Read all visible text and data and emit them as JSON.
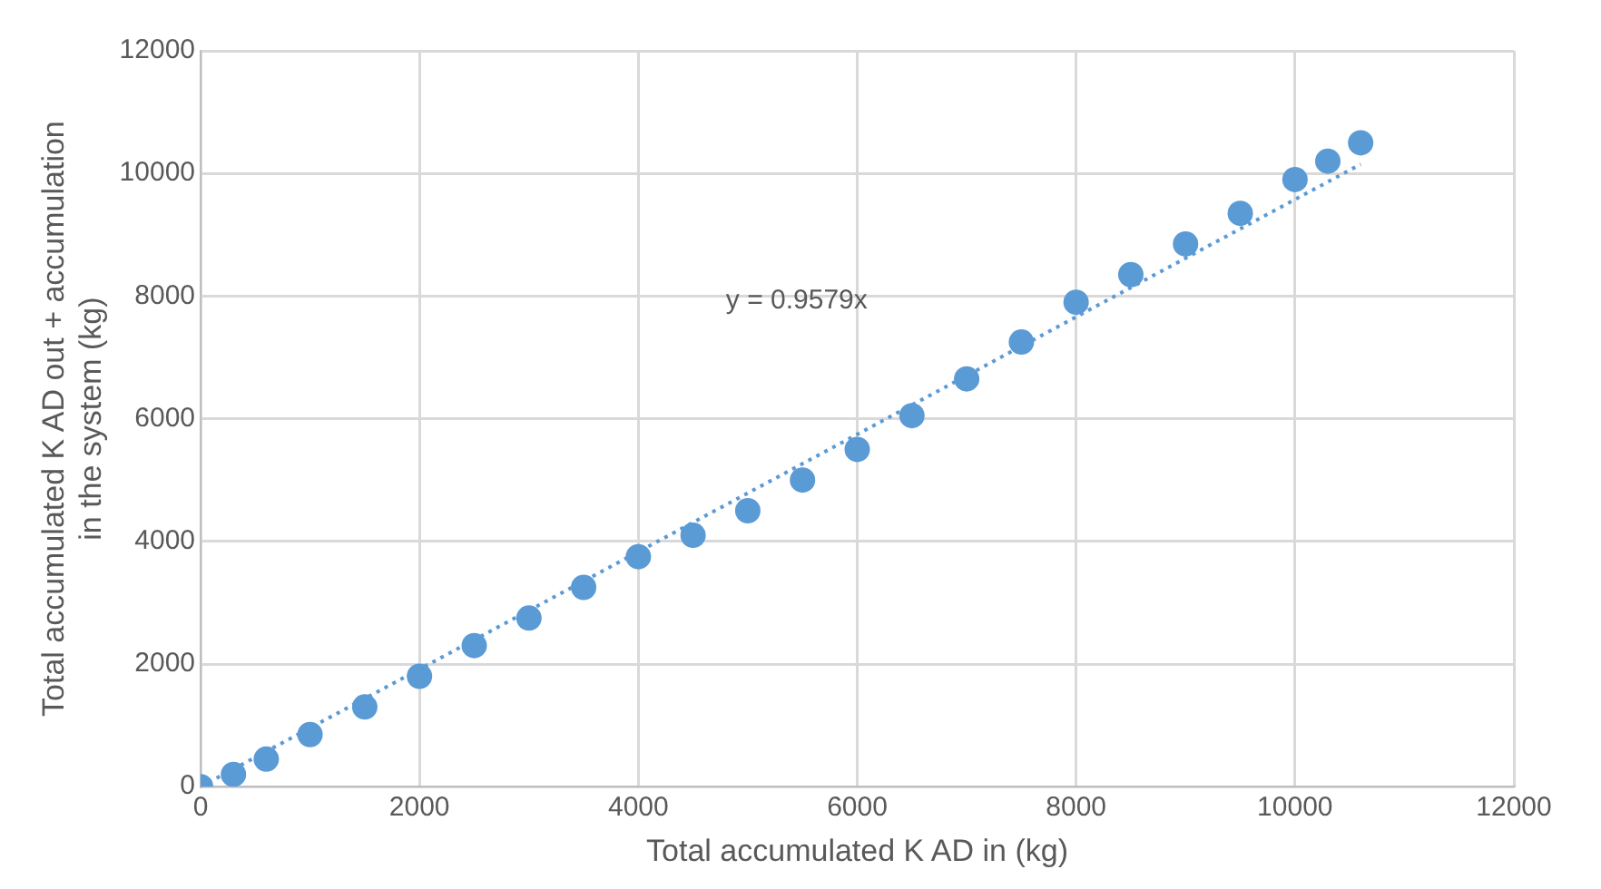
{
  "chart_data": {
    "type": "scatter",
    "xlabel": "Total accumulated K AD in (kg)",
    "ylabel": "Total accumulated K AD out + accumulation in the system (kg)",
    "xlim": [
      0,
      12000
    ],
    "ylim": [
      0,
      12000
    ],
    "xticks": [
      0,
      2000,
      4000,
      6000,
      8000,
      10000,
      12000
    ],
    "yticks": [
      0,
      2000,
      4000,
      6000,
      8000,
      10000,
      12000
    ],
    "grid": true,
    "legend": false,
    "marker": "circle",
    "annotations": [
      "y = 0.9579x"
    ],
    "series": [
      {
        "color": "#5b9bd5",
        "x": [
          0,
          300,
          600,
          1000,
          1500,
          2000,
          2500,
          3000,
          3500,
          4000,
          4500,
          5000,
          5500,
          6000,
          6500,
          7000,
          7500,
          8000,
          8500,
          9000,
          9500,
          10000,
          10300,
          10600
        ],
        "values": [
          0,
          200,
          450,
          850,
          1300,
          1800,
          2300,
          2750,
          3250,
          3750,
          4100,
          4500,
          5000,
          5500,
          6050,
          6650,
          7250,
          7900,
          8350,
          8850,
          9350,
          9900,
          10200,
          10500
        ]
      },
      {
        "type": "line",
        "color": "#5b9bd5",
        "line_style": "dotted",
        "marker": "none",
        "x": [
          0,
          10600
        ],
        "values": [
          0,
          10150
        ]
      }
    ]
  }
}
